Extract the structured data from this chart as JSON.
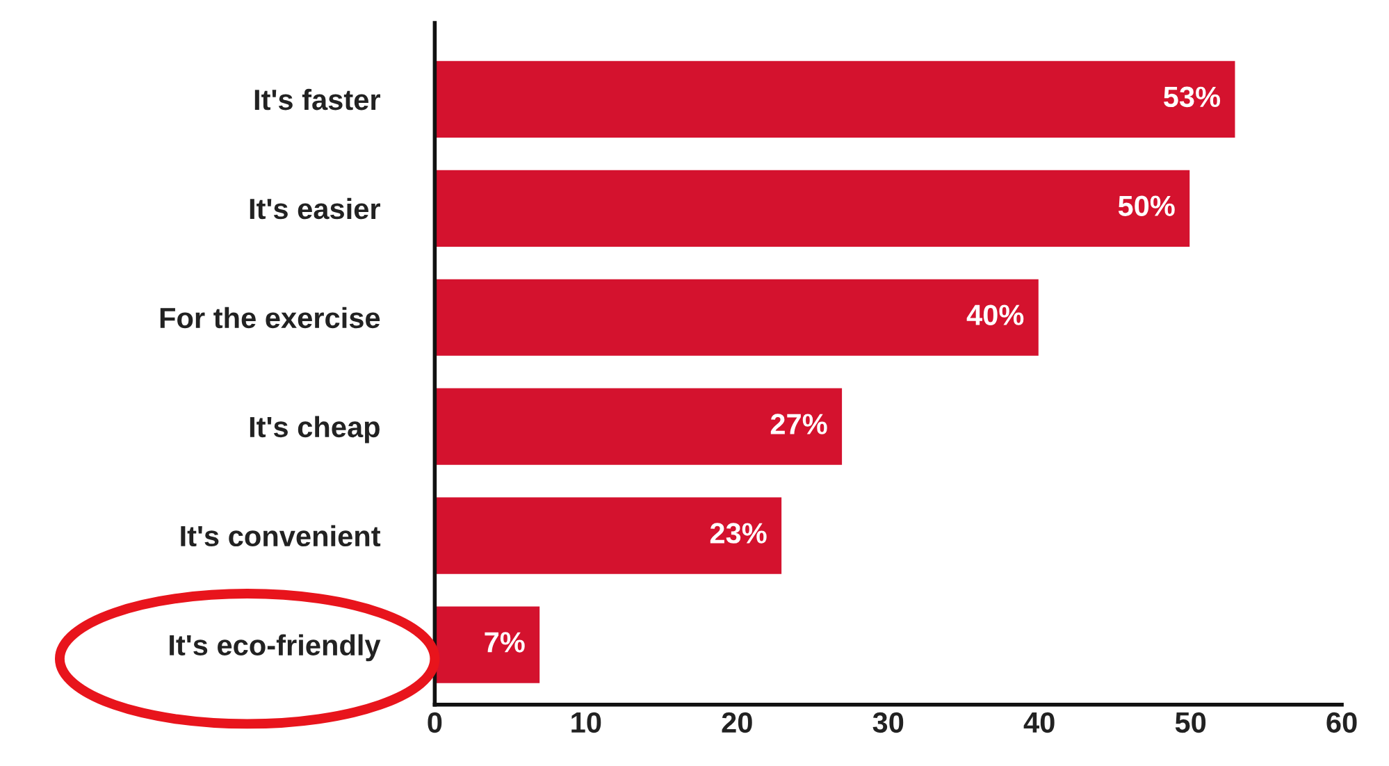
{
  "chart_data": {
    "type": "bar",
    "orientation": "horizontal",
    "categories": [
      "It's faster",
      "It's easier",
      "For the exercise",
      "It's cheap",
      "It's convenient",
      "It's eco-friendly"
    ],
    "values": [
      53,
      50,
      40,
      27,
      23,
      7
    ],
    "value_labels": [
      "53%",
      "50%",
      "40%",
      "27%",
      "23%",
      "7%"
    ],
    "color": "#d4122e",
    "xlim": [
      0,
      60
    ],
    "xticks": [
      0,
      10,
      20,
      30,
      40,
      50,
      60
    ],
    "grid": false,
    "legend": false
  }
}
